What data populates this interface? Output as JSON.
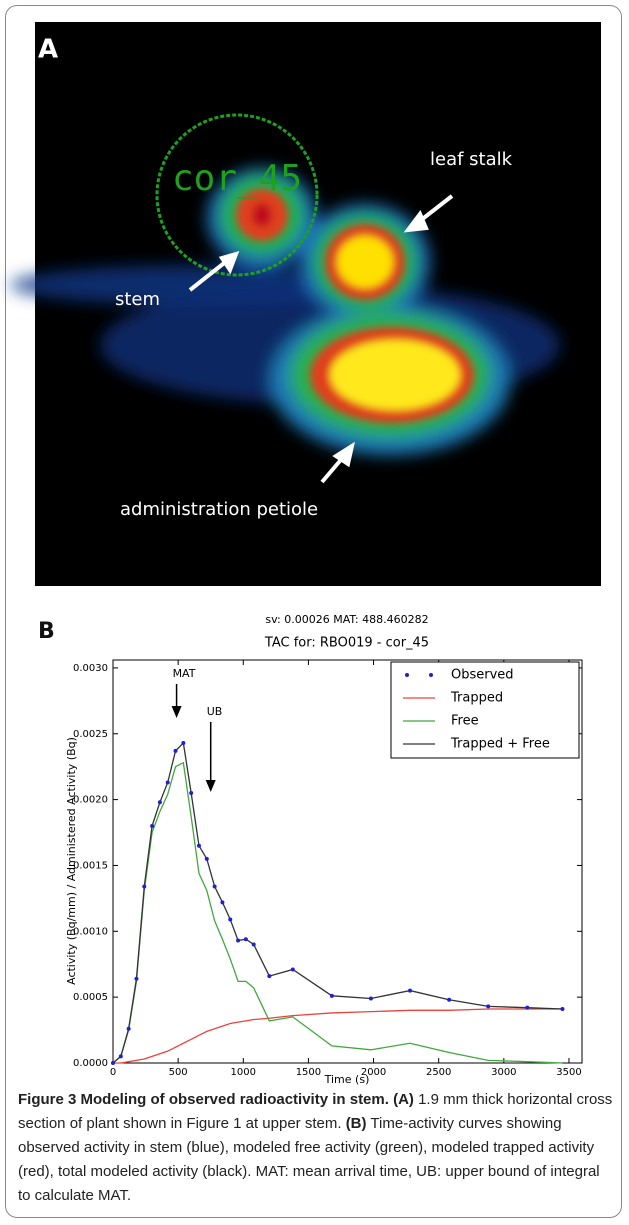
{
  "panel_a": {
    "label": "A",
    "roi_label": "cor_45",
    "annotations": [
      "leaf stalk",
      "stem",
      "administration petiole"
    ]
  },
  "chart_data": {
    "type": "line",
    "panel_label": "B",
    "subtitle": "sv: 0.00026 MAT: 488.460282",
    "title": "TAC for: RBO019 - cor_45",
    "x_label": "Time (s)",
    "y_label": "Activity (Bq/mm) / Administered Activity (Bq)",
    "x": [
      0,
      60,
      120,
      180,
      240,
      300,
      360,
      420,
      480,
      540,
      600,
      660,
      720,
      780,
      840,
      900,
      960,
      1020,
      1080,
      1200,
      1380,
      1680,
      1980,
      2280,
      2580,
      2880,
      3180,
      3450
    ],
    "series": [
      {
        "name": "Observed",
        "color": "#1f1fd8",
        "mode": "markers",
        "values": [
          0,
          5e-05,
          0.00026,
          0.00064,
          0.00134,
          0.0018,
          0.00198,
          0.00213,
          0.00237,
          0.00243,
          0.00205,
          0.00165,
          0.00155,
          0.00134,
          0.00122,
          0.00109,
          0.00093,
          0.00094,
          0.0009,
          0.00066,
          0.00071,
          0.00051,
          0.00049,
          0.00055,
          0.00048,
          0.00043,
          0.00042,
          0.00041
        ]
      },
      {
        "name": "Trapped",
        "color": "#e8443c",
        "mode": "lines",
        "values": [
          0,
          0,
          1e-05,
          2e-05,
          3e-05,
          5e-05,
          7e-05,
          9e-05,
          0.00012,
          0.00015,
          0.00018,
          0.00021,
          0.00024,
          0.00026,
          0.00028,
          0.0003,
          0.00031,
          0.00032,
          0.00033,
          0.00034,
          0.00036,
          0.00038,
          0.00039,
          0.0004,
          0.0004,
          0.00041,
          0.00041,
          0.00041
        ]
      },
      {
        "name": "Free",
        "color": "#41a83e",
        "mode": "lines",
        "values": [
          0,
          5e-05,
          0.00025,
          0.00062,
          0.00131,
          0.00175,
          0.00191,
          0.00204,
          0.00225,
          0.00228,
          0.00187,
          0.00144,
          0.00131,
          0.00108,
          0.00094,
          0.00079,
          0.00062,
          0.00062,
          0.00057,
          0.00032,
          0.00035,
          0.00013,
          0.0001,
          0.00015,
          8e-05,
          2e-05,
          1e-05,
          0
        ]
      },
      {
        "name": "Trapped + Free",
        "color": "#333333",
        "mode": "lines",
        "values": [
          0,
          5e-05,
          0.00026,
          0.00064,
          0.00134,
          0.0018,
          0.00198,
          0.00213,
          0.00237,
          0.00243,
          0.00205,
          0.00165,
          0.00155,
          0.00134,
          0.00122,
          0.00109,
          0.00093,
          0.00094,
          0.0009,
          0.00066,
          0.00071,
          0.00051,
          0.00049,
          0.00055,
          0.00048,
          0.00043,
          0.00042,
          0.00041
        ]
      }
    ],
    "xlim": [
      0,
      3600
    ],
    "xticks": [
      0,
      500,
      1000,
      1500,
      2000,
      2500,
      3000,
      3500
    ],
    "ylim": [
      0,
      0.00306
    ],
    "yticks": [
      {
        "value": 0,
        "label": "0.0000"
      },
      {
        "value": 0.0005,
        "label": "0.0005"
      },
      {
        "value": 0.001,
        "label": "0.0010"
      },
      {
        "value": 0.0015,
        "label": "0.0015"
      },
      {
        "value": 0.002,
        "label": "0.0020"
      },
      {
        "value": 0.0025,
        "label": "0.0025"
      },
      {
        "value": 0.003,
        "label": "0.0030"
      }
    ],
    "annotations": [
      {
        "text": "MAT",
        "x": 488
      },
      {
        "text": "UB",
        "x": 750
      }
    ],
    "legend": "upper right",
    "grid": false
  },
  "caption": {
    "title": "Figure 3 Modeling of observed radioactivity in stem.",
    "parts": [
      {
        "label": "(A)",
        "text": "1.9 mm thick horizontal cross section of plant shown in Figure 1 at upper stem."
      },
      {
        "label": "(B)",
        "text": "Time-activity curves showing observed activity in stem (blue), modeled free activity (green), modeled trapped activity (red), total modeled activity (black). MAT: mean arrival time, UB: upper bound of integral to calculate MAT."
      }
    ]
  }
}
